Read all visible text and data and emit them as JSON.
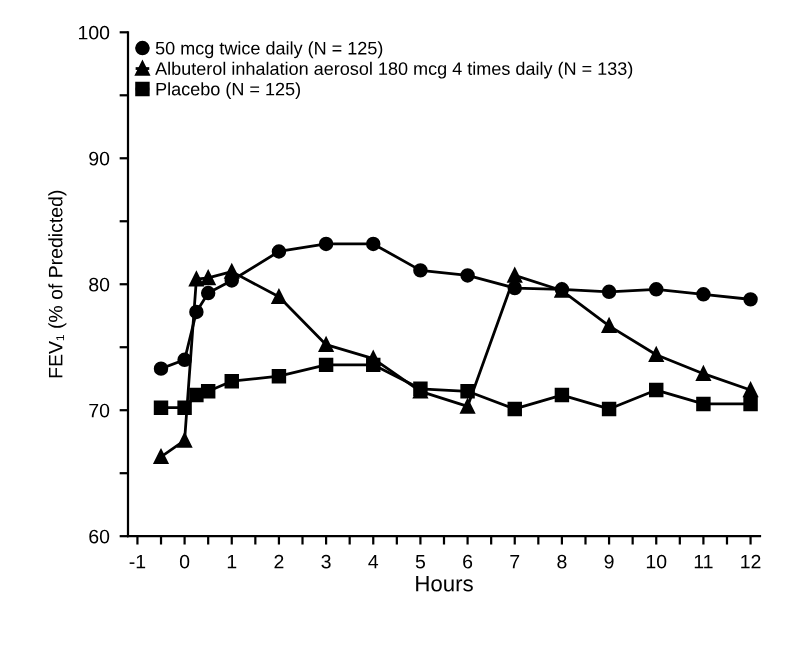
{
  "chart_data": {
    "type": "line",
    "xlabel": "Hours",
    "ylabel": "FEV₁ (% of Predicted)",
    "x": [
      -0.5,
      0,
      0.25,
      0.5,
      1,
      2,
      3,
      4,
      5,
      6,
      7,
      8,
      9,
      10,
      11,
      12
    ],
    "series": [
      {
        "name": "50 mcg twice daily (N = 125)",
        "color": "#000000",
        "marker": "circle",
        "values": [
          73.3,
          74.0,
          77.8,
          79.3,
          80.3,
          82.6,
          83.2,
          83.2,
          81.1,
          80.7,
          79.7,
          79.6,
          79.4,
          79.6,
          79.2,
          78.8
        ]
      },
      {
        "name": "Albuterol inhalation aerosol 180 mcg 4 times daily (N = 133)",
        "color": "#000000",
        "marker": "triangle",
        "values": [
          66.3,
          67.6,
          80.4,
          80.5,
          81.0,
          79.0,
          75.2,
          74.1,
          71.5,
          70.3,
          80.7,
          79.5,
          76.7,
          74.4,
          72.9,
          71.6
        ]
      },
      {
        "name": "Placebo (N = 125)",
        "color": "#000000",
        "marker": "square",
        "values": [
          70.2,
          70.2,
          71.2,
          71.5,
          72.3,
          72.7,
          73.6,
          73.6,
          71.7,
          71.5,
          70.1,
          71.2,
          70.1,
          71.6,
          70.5,
          70.5
        ]
      }
    ],
    "xlim": [
      -1.2,
      12.2
    ],
    "ylim": [
      60,
      100
    ],
    "xticks": [
      -1,
      {
        "value": -0.5,
        "label": null
      },
      0,
      {
        "value": 0.5,
        "label": null
      },
      1,
      {
        "value": 1.5,
        "label": null
      },
      2,
      {
        "value": 2.5,
        "label": null
      },
      3,
      {
        "value": 3.5,
        "label": null
      },
      4,
      {
        "value": 4.5,
        "label": null
      },
      5,
      {
        "value": 5.5,
        "label": null
      },
      6,
      {
        "value": 6.5,
        "label": null
      },
      7,
      {
        "value": 7.5,
        "label": null
      },
      8,
      {
        "value": 8.5,
        "label": null
      },
      9,
      {
        "value": 9.5,
        "label": null
      },
      10,
      {
        "value": 10.5,
        "label": null
      },
      11,
      {
        "value": 11.5,
        "label": null
      },
      12
    ],
    "yticks": [
      60,
      {
        "value": 65,
        "label": null
      },
      70,
      {
        "value": 75,
        "label": null
      },
      80,
      {
        "value": 85,
        "label": null
      },
      90,
      {
        "value": 95,
        "label": null
      },
      100
    ],
    "grid": false,
    "legend": "top left",
    "line_style": "solid"
  }
}
